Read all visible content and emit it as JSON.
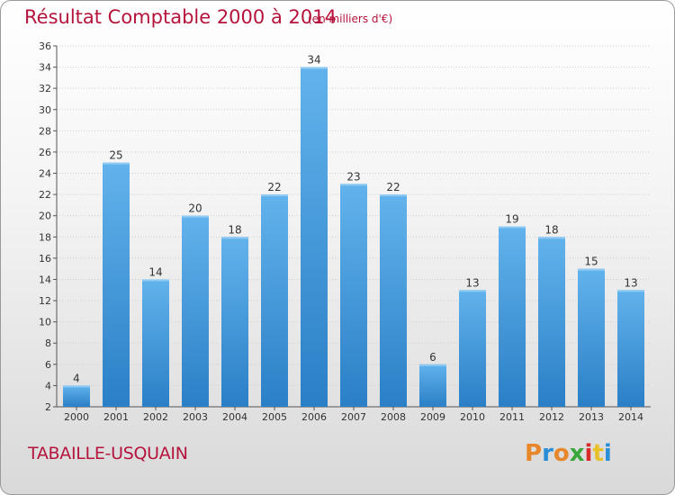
{
  "header": {
    "title": "Résultat Comptable 2000 à 2014",
    "unit": "(en milliers d'€)"
  },
  "footer": {
    "town": "TABAILLE-USQUAIN",
    "logo": "Proxiti",
    "logo_colors": [
      "#e8862a",
      "#2a8fd8",
      "#e8862a",
      "#3aa63a",
      "#d82a2a",
      "#e8c02a",
      "#2a8fd8"
    ]
  },
  "colors": {
    "title": "#b5143c",
    "bar_light": "#62b3ec",
    "bar_dark": "#2a7fc6",
    "grid": "#cfcfcf",
    "axis": "#555555"
  },
  "chart_data": {
    "type": "bar",
    "title": "Résultat Comptable 2000 à 2014",
    "ylabel": "(en milliers d'€)",
    "xlabel": "",
    "categories": [
      "2000",
      "2001",
      "2002",
      "2003",
      "2004",
      "2005",
      "2006",
      "2007",
      "2008",
      "2009",
      "2010",
      "2011",
      "2012",
      "2013",
      "2014"
    ],
    "values": [
      4,
      25,
      14,
      20,
      18,
      22,
      34,
      23,
      22,
      6,
      13,
      19,
      18,
      15,
      13
    ],
    "ylim": [
      2,
      36
    ],
    "yticks": [
      2,
      4,
      6,
      8,
      10,
      12,
      14,
      16,
      18,
      20,
      22,
      24,
      26,
      28,
      30,
      32,
      34,
      36
    ],
    "grid": true,
    "legend": "none"
  }
}
